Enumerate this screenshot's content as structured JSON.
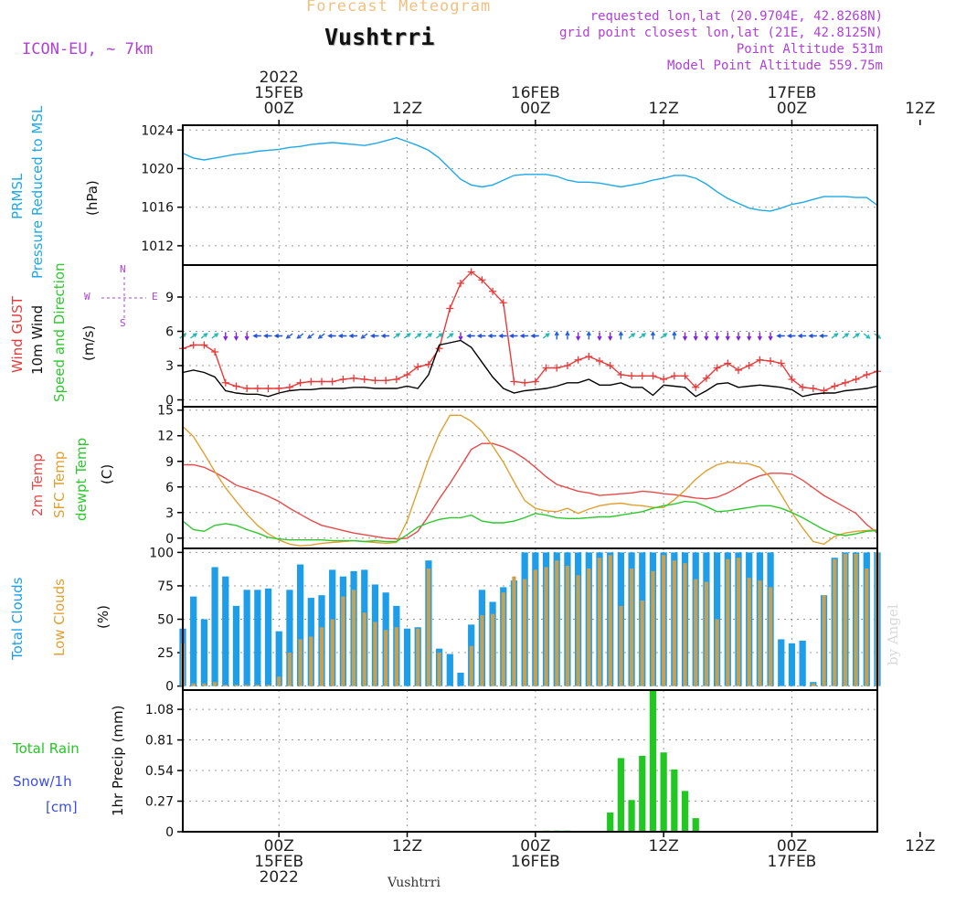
{
  "header": {
    "chart_type_title": "Forecast Meteogram",
    "location": "Vushtrri",
    "model": "ICON-EU, ~ 7km",
    "requested": "requested lon,lat (20.9704E, 42.8268N)",
    "grid_point": "grid point closest lon,lat (21E, 42.8125N)",
    "point_altitude": "Point Altitude 531m",
    "model_altitude": "Model Point Altitude 559.75m",
    "footer_location": "Vushtrri",
    "watermark": "by Angel"
  },
  "time_axis": {
    "start_hour": -9,
    "end_hour": 56,
    "top_labels": [
      {
        "hour": 0,
        "lines": [
          "2022",
          "15FEB",
          "00Z"
        ]
      },
      {
        "hour": 12,
        "lines": [
          "12Z"
        ]
      },
      {
        "hour": 24,
        "lines": [
          "16FEB",
          "00Z"
        ]
      },
      {
        "hour": 36,
        "lines": [
          "12Z"
        ]
      },
      {
        "hour": 48,
        "lines": [
          "17FEB",
          "00Z"
        ]
      },
      {
        "hour": 60,
        "lines": [
          "12Z"
        ]
      }
    ],
    "bottom_labels": [
      {
        "hour": 0,
        "lines": [
          "00Z",
          "15FEB",
          "2022"
        ]
      },
      {
        "hour": 12,
        "lines": [
          "12Z"
        ]
      },
      {
        "hour": 24,
        "lines": [
          "00Z",
          "16FEB"
        ]
      },
      {
        "hour": 36,
        "lines": [
          "12Z"
        ]
      },
      {
        "hour": 48,
        "lines": [
          "00Z",
          "17FEB"
        ]
      },
      {
        "hour": 60,
        "lines": [
          "12Z"
        ]
      }
    ]
  },
  "panel_labels": {
    "pressure": {
      "line1": "PRMSL",
      "line2": "Pressure Reduced to MSL",
      "unit": "(hPa)"
    },
    "wind": {
      "gust": "Wind GUST",
      "wind10": "10m Wind",
      "speed_dir": "Speed and Direction",
      "unit": "(m/s)",
      "compass_w": "W",
      "compass_e": "E",
      "compass_n": "N",
      "compass_s": "S"
    },
    "temp": {
      "t2m": "2m Temp",
      "sfc": "SFC Temp",
      "dewpt": "dewpt Temp",
      "unit": "(C)"
    },
    "clouds": {
      "total": "Total Clouds",
      "low": "Low Clouds",
      "unit": "(%)"
    },
    "precip": {
      "rain": "Total  Rain",
      "snow": "Snow/1h",
      "snow_unit": "[cm]",
      "axis": "1hr Precip (mm)"
    }
  },
  "colors": {
    "pressure": "#1ea8e8",
    "gust": "#e83a3a",
    "wind": "#000000",
    "temp2m": "#e84a4a",
    "sfc": "#e0a030",
    "dewpt": "#2ec82e",
    "total_cloud": "#1e9ee8",
    "low_cloud": "#c8a050",
    "rain": "#22c822",
    "snow_label": "#3a4ee8",
    "title_orange": "#f0c080",
    "purple": "#b040d8"
  },
  "chart_data": [
    {
      "type": "line",
      "title": "PRMSL Pressure Reduced to MSL",
      "ylabel": "(hPa)",
      "ylim": [
        1010,
        1024.5
      ],
      "yticks": [
        1012,
        1016,
        1020,
        1024
      ],
      "x_start_hour": -9,
      "x_step_hours": 1,
      "series": [
        {
          "name": "PRMSL",
          "color": "#1ea8e8",
          "values": [
            1021.6,
            1021.1,
            1020.9,
            1021.1,
            1021.3,
            1021.5,
            1021.6,
            1021.8,
            1021.9,
            1022.0,
            1022.2,
            1022.3,
            1022.5,
            1022.6,
            1022.7,
            1022.6,
            1022.5,
            1022.4,
            1022.6,
            1022.9,
            1023.2,
            1022.8,
            1022.4,
            1021.9,
            1021.1,
            1020.0,
            1018.9,
            1018.3,
            1018.1,
            1018.3,
            1018.8,
            1019.3,
            1019.4,
            1019.4,
            1019.4,
            1019.2,
            1018.8,
            1018.6,
            1018.6,
            1018.5,
            1018.3,
            1018.1,
            1018.3,
            1018.5,
            1018.8,
            1019.0,
            1019.3,
            1019.3,
            1019.0,
            1018.4,
            1017.6,
            1016.9,
            1016.4,
            1015.9,
            1015.7,
            1015.6,
            1015.9,
            1016.3,
            1016.5,
            1016.8,
            1017.1,
            1017.1,
            1017.1,
            1017.0,
            1017.0,
            1016.2
          ]
        }
      ]
    },
    {
      "type": "line",
      "title": "Wind GUST / 10m Wind Speed and Direction",
      "ylabel": "(m/s)",
      "ylim": [
        -0.6,
        11.8
      ],
      "yticks": [
        0,
        3,
        6,
        9
      ],
      "x_start_hour": -9,
      "x_step_hours": 1,
      "series": [
        {
          "name": "Wind GUST",
          "color": "#e83a3a",
          "values": [
            4.5,
            4.8,
            4.8,
            4.2,
            1.5,
            1.2,
            1.0,
            1.0,
            1.0,
            1.0,
            1.1,
            1.5,
            1.6,
            1.6,
            1.6,
            1.8,
            1.9,
            1.8,
            1.7,
            1.7,
            1.8,
            2.2,
            2.9,
            3.1,
            4.5,
            8.0,
            10.2,
            11.2,
            10.5,
            9.5,
            8.5,
            1.6,
            1.5,
            1.6,
            2.8,
            2.8,
            3.0,
            3.5,
            3.8,
            3.4,
            3.0,
            2.2,
            2.1,
            2.1,
            2.1,
            1.8,
            2.1,
            2.1,
            1.1,
            1.9,
            2.8,
            3.2,
            2.6,
            3.0,
            3.5,
            3.4,
            3.2,
            1.8,
            1.1,
            1.0,
            0.8,
            1.2,
            1.5,
            1.8,
            2.2,
            2.5
          ]
        },
        {
          "name": "10m Wind",
          "color": "#000000",
          "values": [
            2.4,
            2.6,
            2.4,
            2.0,
            0.8,
            0.6,
            0.5,
            0.5,
            0.3,
            0.6,
            0.8,
            0.9,
            0.9,
            1.0,
            1.0,
            1.0,
            1.1,
            1.1,
            1.0,
            1.0,
            1.0,
            1.2,
            1.0,
            2.2,
            4.8,
            5.0,
            5.2,
            4.6,
            3.3,
            2.0,
            1.0,
            0.6,
            0.8,
            0.9,
            1.0,
            1.2,
            1.5,
            1.5,
            1.8,
            1.3,
            1.3,
            1.5,
            1.1,
            1.1,
            0.4,
            1.3,
            1.2,
            1.1,
            0.3,
            0.8,
            1.4,
            1.5,
            1.1,
            1.2,
            1.3,
            1.2,
            1.1,
            0.9,
            0.3,
            0.5,
            0.6,
            0.6,
            0.8,
            0.9,
            1.0,
            1.2
          ]
        }
      ],
      "wind_arrows": [
        {
          "hour": -9,
          "dir": "NE"
        },
        {
          "hour": -8,
          "dir": "NE"
        },
        {
          "hour": -7,
          "dir": "NE"
        },
        {
          "hour": -6,
          "dir": "NE"
        },
        {
          "hour": -5,
          "dir": "S"
        },
        {
          "hour": -4,
          "dir": "S"
        },
        {
          "hour": -3,
          "dir": "S"
        },
        {
          "hour": -2,
          "dir": "W"
        },
        {
          "hour": -1,
          "dir": "W"
        },
        {
          "hour": 0,
          "dir": "W"
        },
        {
          "hour": 1,
          "dir": "SW"
        },
        {
          "hour": 2,
          "dir": "SW"
        },
        {
          "hour": 3,
          "dir": "SW"
        },
        {
          "hour": 4,
          "dir": "SW"
        },
        {
          "hour": 5,
          "dir": "W"
        },
        {
          "hour": 6,
          "dir": "W"
        },
        {
          "hour": 7,
          "dir": "W"
        },
        {
          "hour": 8,
          "dir": "SW"
        },
        {
          "hour": 9,
          "dir": "W"
        },
        {
          "hour": 10,
          "dir": "W"
        },
        {
          "hour": 11,
          "dir": "NE"
        },
        {
          "hour": 12,
          "dir": "NE"
        },
        {
          "hour": 13,
          "dir": "NE"
        },
        {
          "hour": 14,
          "dir": "NE"
        },
        {
          "hour": 15,
          "dir": "NE"
        },
        {
          "hour": 16,
          "dir": "NE"
        },
        {
          "hour": 17,
          "dir": "S"
        },
        {
          "hour": 18,
          "dir": "W"
        },
        {
          "hour": 19,
          "dir": "W"
        },
        {
          "hour": 20,
          "dir": "W"
        },
        {
          "hour": 21,
          "dir": "W"
        },
        {
          "hour": 22,
          "dir": "W"
        },
        {
          "hour": 23,
          "dir": "W"
        },
        {
          "hour": 24,
          "dir": "W"
        },
        {
          "hour": 25,
          "dir": "NE"
        },
        {
          "hour": 26,
          "dir": "N"
        },
        {
          "hour": 27,
          "dir": "N"
        },
        {
          "hour": 28,
          "dir": "S"
        },
        {
          "hour": 29,
          "dir": "N"
        },
        {
          "hour": 30,
          "dir": "S"
        },
        {
          "hour": 31,
          "dir": "S"
        },
        {
          "hour": 32,
          "dir": "N"
        },
        {
          "hour": 33,
          "dir": "NE"
        },
        {
          "hour": 34,
          "dir": "NE"
        },
        {
          "hour": 35,
          "dir": "N"
        },
        {
          "hour": 36,
          "dir": "NE"
        },
        {
          "hour": 37,
          "dir": "N"
        },
        {
          "hour": 38,
          "dir": "S"
        },
        {
          "hour": 39,
          "dir": "S"
        },
        {
          "hour": 40,
          "dir": "S"
        },
        {
          "hour": 41,
          "dir": "S"
        },
        {
          "hour": 42,
          "dir": "S"
        },
        {
          "hour": 43,
          "dir": "S"
        },
        {
          "hour": 44,
          "dir": "S"
        },
        {
          "hour": 45,
          "dir": "S"
        },
        {
          "hour": 46,
          "dir": "S"
        },
        {
          "hour": 47,
          "dir": "W"
        },
        {
          "hour": 48,
          "dir": "W"
        },
        {
          "hour": 49,
          "dir": "W"
        },
        {
          "hour": 50,
          "dir": "W"
        },
        {
          "hour": 51,
          "dir": "W"
        },
        {
          "hour": 52,
          "dir": "NE"
        },
        {
          "hour": 53,
          "dir": "NE"
        },
        {
          "hour": 54,
          "dir": "NE"
        },
        {
          "hour": 55,
          "dir": "SE"
        },
        {
          "hour": 56,
          "dir": "SE"
        }
      ]
    },
    {
      "type": "line",
      "title": "2m Temp / SFC Temp / dewpt Temp",
      "ylabel": "(C)",
      "ylim": [
        -1.2,
        15.4
      ],
      "yticks": [
        0,
        3,
        6,
        9,
        12,
        15
      ],
      "x_start_hour": -9,
      "x_step_hours": 1,
      "series": [
        {
          "name": "2m Temp",
          "color": "#e84a4a",
          "values": [
            8.6,
            8.6,
            8.3,
            7.7,
            7.0,
            6.2,
            5.8,
            5.4,
            4.9,
            4.3,
            3.5,
            2.8,
            2.1,
            1.5,
            1.2,
            0.9,
            0.6,
            0.4,
            0.2,
            0.0,
            -0.1,
            0.0,
            0.8,
            2.6,
            4.6,
            6.4,
            8.4,
            10.4,
            11.1,
            11.1,
            10.7,
            10.1,
            9.3,
            8.3,
            7.2,
            6.3,
            5.9,
            5.5,
            5.3,
            5.0,
            5.1,
            5.2,
            5.3,
            5.5,
            5.4,
            5.2,
            5.1,
            4.9,
            4.7,
            4.6,
            4.8,
            5.3,
            6.0,
            6.8,
            7.3,
            7.6,
            7.6,
            7.5,
            6.8,
            5.9,
            5.0,
            4.3,
            3.6,
            2.9,
            1.6,
            0.6
          ]
        },
        {
          "name": "SFC Temp",
          "color": "#e0a030",
          "values": [
            13.1,
            11.9,
            9.9,
            7.8,
            5.9,
            4.3,
            2.8,
            1.5,
            0.5,
            -0.2,
            -0.7,
            -0.9,
            -0.8,
            -0.6,
            -0.5,
            -0.4,
            -0.3,
            -0.4,
            -0.5,
            -0.6,
            -0.5,
            2.0,
            5.6,
            9.2,
            12.2,
            14.4,
            14.4,
            13.7,
            12.5,
            10.8,
            8.9,
            6.6,
            4.4,
            3.5,
            3.2,
            3.1,
            3.5,
            2.9,
            3.4,
            3.8,
            4.0,
            4.1,
            3.9,
            3.8,
            3.6,
            3.6,
            4.5,
            5.6,
            6.9,
            7.9,
            8.6,
            8.9,
            8.8,
            8.7,
            8.3,
            7.1,
            5.1,
            3.0,
            1.2,
            -0.4,
            -0.7,
            0.2,
            0.6,
            0.8,
            0.9,
            1.0
          ]
        },
        {
          "name": "dewpt Temp",
          "color": "#2ec82e",
          "values": [
            2.0,
            1.0,
            0.8,
            1.5,
            1.7,
            1.5,
            1.0,
            0.6,
            0.1,
            -0.1,
            -0.2,
            -0.2,
            -0.2,
            -0.2,
            -0.3,
            -0.3,
            -0.3,
            -0.4,
            -0.3,
            -0.4,
            -0.4,
            0.4,
            1.3,
            1.8,
            2.2,
            2.4,
            2.4,
            2.7,
            2.0,
            1.8,
            1.8,
            2.0,
            2.4,
            2.9,
            2.7,
            2.4,
            2.3,
            2.3,
            2.4,
            2.5,
            2.5,
            2.7,
            2.9,
            3.1,
            3.5,
            3.8,
            4.0,
            4.3,
            4.2,
            3.7,
            3.1,
            3.2,
            3.4,
            3.6,
            3.8,
            3.8,
            3.5,
            3.0,
            2.4,
            1.7,
            1.0,
            0.5,
            0.3,
            0.5,
            0.8,
            0.9
          ]
        }
      ]
    },
    {
      "type": "bar",
      "title": "Total Clouds / Low Clouds",
      "ylabel": "(%)",
      "ylim": [
        -3,
        103
      ],
      "yticks": [
        0,
        25,
        50,
        75,
        100
      ],
      "x_start_hour": -9,
      "x_step_hours": 1,
      "series": [
        {
          "name": "Total Clouds",
          "color": "#1e9ee8",
          "values": [
            43,
            67,
            50,
            89,
            82,
            60,
            72,
            72,
            73,
            41,
            72,
            91,
            66,
            68,
            87,
            82,
            86,
            87,
            76,
            70,
            60,
            43,
            44,
            94,
            28,
            24,
            10,
            46,
            72,
            63,
            74,
            79,
            100,
            100,
            100,
            100,
            100,
            100,
            100,
            100,
            100,
            100,
            100,
            100,
            100,
            100,
            100,
            100,
            100,
            100,
            100,
            100,
            100,
            100,
            100,
            100,
            35,
            32,
            34,
            3,
            68,
            96,
            100,
            100,
            100,
            100
          ]
        },
        {
          "name": "Low Clouds",
          "color": "#c8a050",
          "values": [
            32,
            2,
            2,
            3,
            1,
            1,
            1,
            1,
            1,
            7,
            25,
            35,
            37,
            44,
            50,
            67,
            72,
            55,
            48,
            42,
            44,
            0,
            43,
            88,
            25,
            0,
            0,
            30,
            53,
            54,
            70,
            82,
            80,
            87,
            89,
            94,
            90,
            83,
            88,
            96,
            98,
            60,
            88,
            64,
            86,
            98,
            94,
            92,
            80,
            78,
            50,
            95,
            96,
            81,
            79,
            74,
            0,
            0,
            0,
            2,
            68,
            95,
            99,
            99,
            88,
            100
          ]
        }
      ]
    },
    {
      "type": "bar",
      "title": "1hr Precip",
      "ylabel": "1hr Precip (mm)",
      "ylim": [
        0,
        1.25
      ],
      "yticks": [
        0,
        0.27,
        0.54,
        0.81,
        1.08
      ],
      "x_start_hour": -9,
      "x_step_hours": 1,
      "series": [
        {
          "name": "Total Rain",
          "color": "#22c822",
          "values": [
            0,
            0,
            0,
            0,
            0,
            0,
            0,
            0,
            0,
            0,
            0,
            0,
            0,
            0,
            0,
            0,
            0,
            0,
            0,
            0,
            0,
            0,
            0,
            0,
            0,
            0,
            0,
            0,
            0,
            0,
            0,
            0,
            0,
            0,
            0.01,
            0.01,
            0.01,
            0,
            0,
            0,
            0.17,
            0.65,
            0.28,
            0.67,
            1.25,
            0.7,
            0.55,
            0.36,
            0.12,
            0,
            0,
            0,
            0,
            0,
            0,
            0,
            0,
            0,
            0,
            0,
            0,
            0,
            0,
            0,
            0,
            0
          ]
        }
      ]
    }
  ]
}
